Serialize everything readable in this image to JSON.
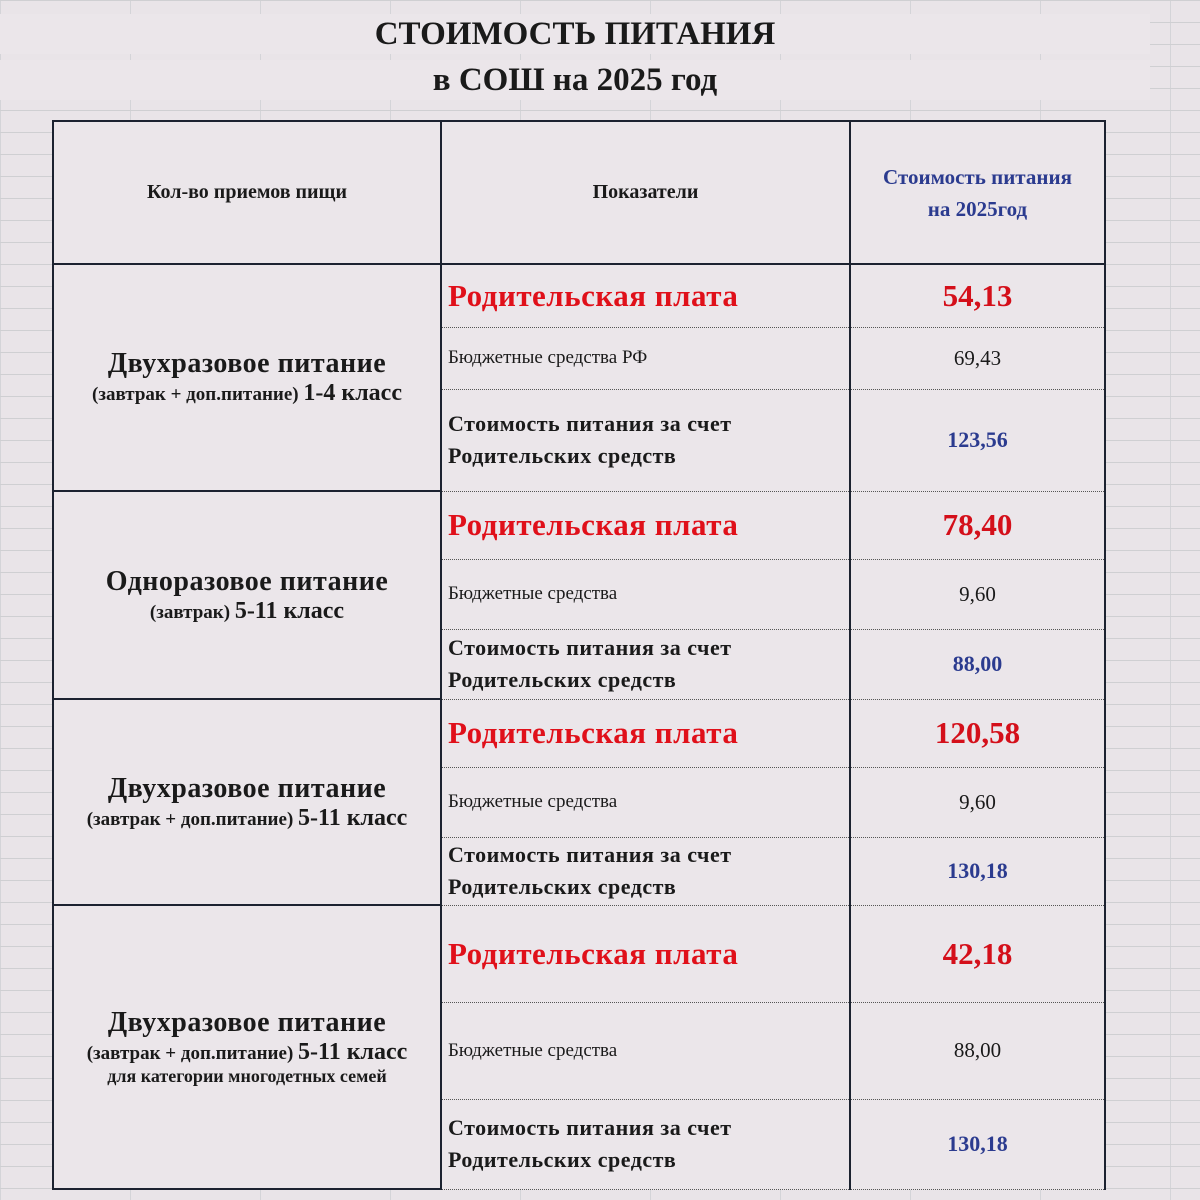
{
  "title": {
    "line1": "СТОИМОСТЬ ПИТАНИЯ",
    "line2": "в СОШ  на 2025 год"
  },
  "headers": {
    "meals": "Кол-во приемов пищи",
    "indicators": "Показатели",
    "cost_line1": "Стоимость питания",
    "cost_line2": "на  2025год"
  },
  "groups": [
    {
      "name": "Двухразовое питание",
      "detail": "(завтрак + доп.питание)",
      "grade": "1-4 класс",
      "note": "",
      "parent_label": "Родительская плата",
      "parent_value": "54,13",
      "budget_label": "Бюджетные средства РФ",
      "budget_value": "69,43",
      "total_line1": "Стоимость питания за счет",
      "total_line2": "Родительских средств",
      "total_value": "123,56"
    },
    {
      "name": "Одноразовое питание",
      "detail": "(завтрак)",
      "grade": "5-11 класс",
      "note": "",
      "parent_label": "Родительская плата",
      "parent_value": "78,40",
      "budget_label": "Бюджетные средства",
      "budget_value": "9,60",
      "total_line1": "Стоимость питания за счет",
      "total_line2": "Родительских средств",
      "total_value": "88,00"
    },
    {
      "name": "Двухразовое питание",
      "detail": "(завтрак + доп.питание)",
      "grade": "5-11 класс",
      "note": "",
      "parent_label": "Родительская плата",
      "parent_value": "120,58",
      "budget_label": "Бюджетные средства",
      "budget_value": "9,60",
      "total_line1": "Стоимость питания за счет",
      "total_line2": "Родительских средств",
      "total_value": "130,18"
    },
    {
      "name": "Двухразовое питание",
      "detail": "(завтрак + доп.питание)",
      "grade": "5-11 класс",
      "note": "для категории многодетных семей",
      "parent_label": "Родительская плата",
      "parent_value": "42,18",
      "budget_label": "Бюджетные средства",
      "budget_value": "88,00",
      "total_line1": "Стоимость питания за счет",
      "total_line2": "Родительских средств",
      "total_value": "130,18"
    }
  ],
  "colors": {
    "parent_fee": "#e0101a",
    "total": "#2b3b8f",
    "header_cost": "#2b3b8f"
  }
}
